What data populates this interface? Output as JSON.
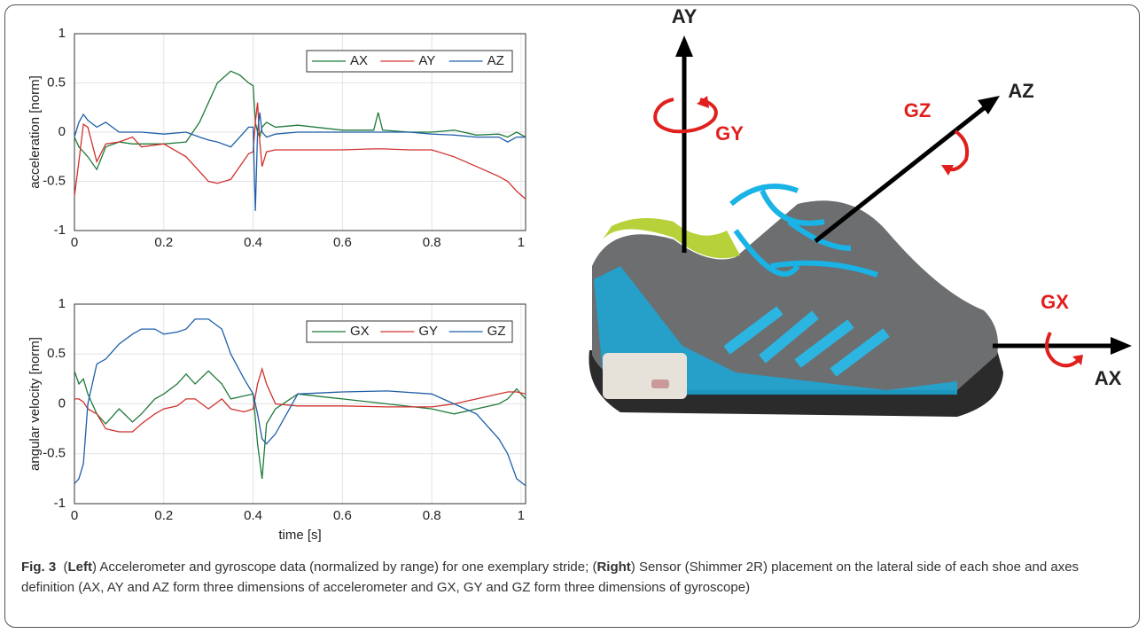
{
  "chart_data": [
    {
      "type": "line",
      "ylabel": "acceleration [norm]",
      "x": [
        0,
        0.01,
        0.02,
        0.03,
        0.05,
        0.07,
        0.1,
        0.13,
        0.15,
        0.2,
        0.25,
        0.28,
        0.3,
        0.32,
        0.35,
        0.37,
        0.39,
        0.4,
        0.405,
        0.41,
        0.415,
        0.42,
        0.43,
        0.45,
        0.5,
        0.6,
        0.67,
        0.68,
        0.69,
        0.75,
        0.8,
        0.85,
        0.9,
        0.95,
        0.97,
        0.99,
        1.01
      ],
      "series": [
        {
          "name": "AX",
          "color": "#1f7a3a",
          "values": [
            -0.05,
            -0.15,
            -0.2,
            -0.25,
            -0.38,
            -0.15,
            -0.1,
            -0.12,
            -0.12,
            -0.12,
            -0.1,
            0.1,
            0.3,
            0.5,
            0.62,
            0.58,
            0.5,
            0.47,
            0.1,
            0.0,
            -0.05,
            0.05,
            0.1,
            0.05,
            0.07,
            0.02,
            0.02,
            0.2,
            0.02,
            0.0,
            0.0,
            0.02,
            -0.03,
            -0.02,
            -0.05,
            0.0,
            -0.05
          ]
        },
        {
          "name": "AY",
          "color": "#d0312d",
          "values": [
            -0.65,
            -0.3,
            0.08,
            0.05,
            -0.3,
            -0.12,
            -0.1,
            -0.05,
            -0.15,
            -0.12,
            -0.25,
            -0.4,
            -0.5,
            -0.52,
            -0.48,
            -0.35,
            -0.22,
            -0.2,
            0.1,
            0.3,
            -0.1,
            -0.35,
            -0.2,
            -0.18,
            -0.18,
            -0.18,
            -0.17,
            -0.17,
            -0.17,
            -0.18,
            -0.18,
            -0.25,
            -0.35,
            -0.45,
            -0.5,
            -0.6,
            -0.68
          ]
        },
        {
          "name": "AZ",
          "color": "#1f5fa8",
          "values": [
            -0.05,
            0.1,
            0.18,
            0.12,
            0.05,
            0.1,
            0.0,
            0.0,
            0.0,
            -0.02,
            0.0,
            -0.05,
            -0.08,
            -0.1,
            -0.15,
            -0.05,
            0.05,
            0.05,
            -0.8,
            0.0,
            0.2,
            0.0,
            -0.05,
            -0.02,
            0.0,
            0.0,
            0.0,
            0.0,
            0.0,
            0.0,
            -0.02,
            -0.03,
            -0.05,
            -0.05,
            -0.1,
            -0.05,
            -0.05
          ]
        }
      ],
      "xlim": [
        0,
        1.01
      ],
      "ylim": [
        -1,
        1
      ],
      "xticks": [
        0,
        0.2,
        0.4,
        0.6,
        0.8,
        1
      ],
      "yticks": [
        -1,
        -0.5,
        0,
        0.5,
        1
      ],
      "grid": true,
      "legend": "upper-right"
    },
    {
      "type": "line",
      "ylabel": "angular velocity [norm]",
      "xlabel": "time [s]",
      "x": [
        0,
        0.01,
        0.02,
        0.03,
        0.05,
        0.07,
        0.1,
        0.13,
        0.15,
        0.18,
        0.2,
        0.23,
        0.25,
        0.27,
        0.3,
        0.33,
        0.35,
        0.38,
        0.4,
        0.41,
        0.42,
        0.43,
        0.45,
        0.5,
        0.6,
        0.7,
        0.8,
        0.85,
        0.9,
        0.95,
        0.97,
        0.99,
        1.01
      ],
      "series": [
        {
          "name": "GX",
          "color": "#1f7a3a",
          "values": [
            0.33,
            0.2,
            0.25,
            0.1,
            -0.1,
            -0.2,
            -0.05,
            -0.18,
            -0.1,
            0.05,
            0.1,
            0.2,
            0.3,
            0.2,
            0.33,
            0.2,
            0.05,
            0.08,
            0.1,
            -0.4,
            -0.75,
            -0.2,
            -0.05,
            0.1,
            0.05,
            0.0,
            -0.05,
            -0.1,
            -0.05,
            0.0,
            0.05,
            0.15,
            0.05
          ]
        },
        {
          "name": "GY",
          "color": "#d0312d",
          "values": [
            0.05,
            0.05,
            0.02,
            -0.05,
            -0.1,
            -0.25,
            -0.28,
            -0.28,
            -0.2,
            -0.1,
            -0.05,
            -0.02,
            0.05,
            0.05,
            -0.05,
            0.05,
            -0.05,
            -0.08,
            -0.05,
            0.2,
            0.35,
            0.2,
            0.0,
            -0.02,
            -0.02,
            -0.03,
            -0.03,
            0.0,
            0.05,
            0.1,
            0.12,
            0.12,
            0.1
          ]
        },
        {
          "name": "GZ",
          "color": "#1f5fa8",
          "values": [
            -0.8,
            -0.75,
            -0.6,
            0.0,
            0.4,
            0.45,
            0.6,
            0.7,
            0.75,
            0.75,
            0.7,
            0.72,
            0.75,
            0.85,
            0.85,
            0.75,
            0.5,
            0.25,
            0.1,
            -0.1,
            -0.35,
            -0.4,
            -0.3,
            0.1,
            0.12,
            0.13,
            0.1,
            0.0,
            -0.1,
            -0.35,
            -0.5,
            -0.75,
            -0.82
          ]
        }
      ],
      "xlim": [
        0,
        1.01
      ],
      "ylim": [
        -1,
        1
      ],
      "xticks": [
        0,
        0.2,
        0.4,
        0.6,
        0.8,
        1
      ],
      "yticks": [
        -1,
        -0.5,
        0,
        0.5,
        1
      ],
      "grid": true,
      "legend": "upper-right"
    }
  ],
  "diagram": {
    "labels": [
      "AY",
      "AZ",
      "AX",
      "GY",
      "GZ",
      "GX"
    ]
  },
  "caption": {
    "label": "Fig. 3",
    "parts": [
      "(",
      "Left",
      ") Accelerometer and gyroscope data (normalized by range) for one exemplary stride; (",
      "Right",
      ") Sensor (Shimmer 2R) placement on the lateral side of each shoe and axes definition (AX, AY and AZ form three dimensions of accelerometer and GX, GY and GZ form three dimensions of gyroscope)"
    ]
  }
}
